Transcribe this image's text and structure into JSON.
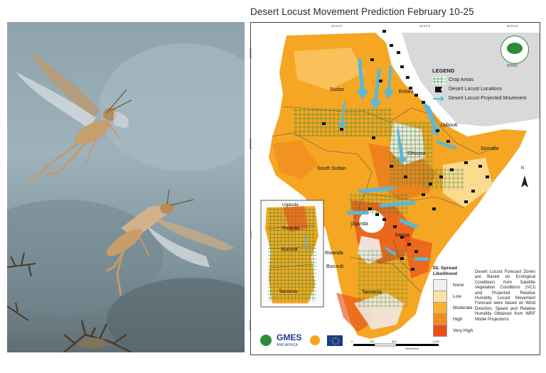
{
  "title": "Desert Locust Movement Prediction February 10-25",
  "photo": {
    "icon": "locust-photo"
  },
  "map": {
    "country_labels": [
      "Sudan",
      "Eritrea",
      "Djibouti",
      "Ethiopia",
      "Somalia",
      "South Sudan",
      "Uganda",
      "Kenya",
      "Tanzania",
      "Rwanda",
      "Burundi"
    ],
    "inset_labels": [
      "Uganda",
      "Rwanda",
      "Burundi",
      "Tanzania"
    ],
    "coords_top": [
      "30°0'0\"E",
      "40°0'0\"E",
      "50°0'0\"E"
    ],
    "coords_left": [
      "20°0'0\"N",
      "10°0'0\"N",
      "0°0'0\"",
      "10°0'0\"S"
    ],
    "scale": [
      "0",
      "250",
      "500",
      "1,000",
      "Kilometers"
    ],
    "north": "N"
  },
  "legend": {
    "title": "LEGEND",
    "items": [
      "Crop Areas",
      "Desert Locust Locations",
      "Desert Locust Projected Movement"
    ]
  },
  "likelihood": {
    "title_line1": "DL Spread",
    "title_line2": "Likelihood",
    "classes": [
      {
        "label": "None",
        "color": "#f0f0f0"
      },
      {
        "label": "Low",
        "color": "#fde3a3"
      },
      {
        "label": "Moderate",
        "color": "#f9b233"
      },
      {
        "label": "High",
        "color": "#f28c1e"
      },
      {
        "label": "Very High",
        "color": "#e8501a"
      }
    ]
  },
  "note": "Desert Locust Forecast Zones are Based on Ecological Conditions from Satellite Vegetation Conditions (VCI) and Projected Relative Humidity. Locust Movement Forecast were based on Wind Direction, Speed and Relative Humidity Obtained from WRF Model Projections",
  "logos": {
    "icpac": "ICPAC",
    "gmes": "GMES",
    "gmes_sub": "AND AFRICA"
  }
}
